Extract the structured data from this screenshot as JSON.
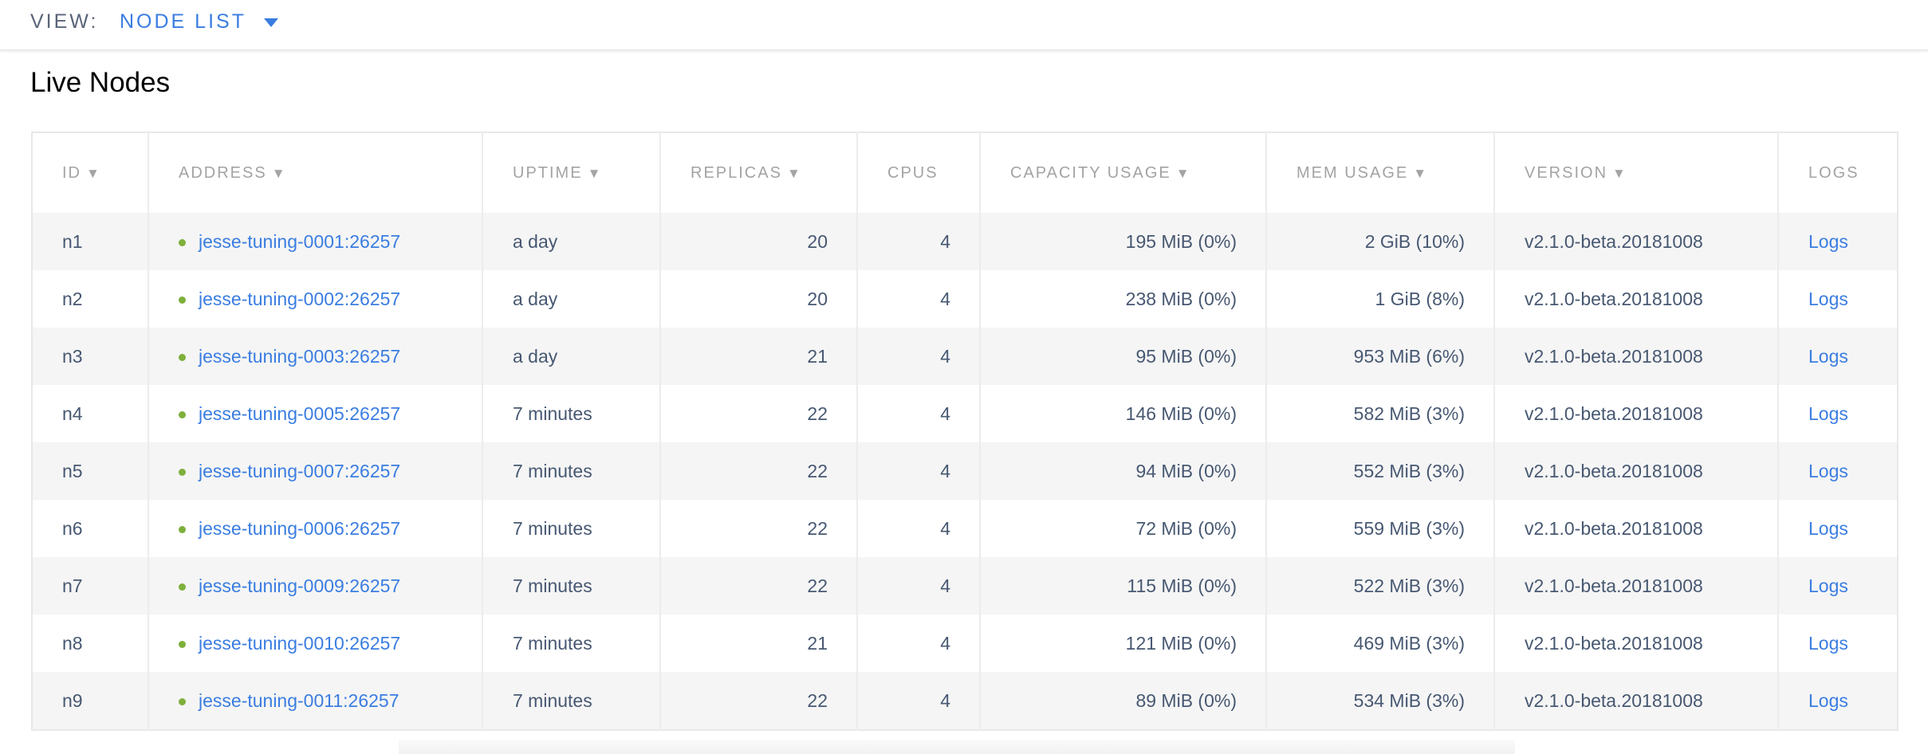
{
  "header": {
    "view_label": "VIEW:",
    "view_value": "NODE LIST"
  },
  "page_title": "Live Nodes",
  "colors": {
    "link": "#3a7de1",
    "status_live": "#7eb03b",
    "text": "#475872",
    "header_text": "#a3a3a3",
    "stripe": "#f5f5f5"
  },
  "table": {
    "columns": [
      {
        "label": "ID",
        "sortable": true
      },
      {
        "label": "ADDRESS",
        "sortable": true
      },
      {
        "label": "UPTIME",
        "sortable": true
      },
      {
        "label": "REPLICAS",
        "sortable": true
      },
      {
        "label": "CPUS",
        "sortable": false
      },
      {
        "label": "CAPACITY USAGE",
        "sortable": true
      },
      {
        "label": "MEM USAGE",
        "sortable": true
      },
      {
        "label": "VERSION",
        "sortable": true
      },
      {
        "label": "LOGS",
        "sortable": false
      }
    ],
    "sort_icon": "▼",
    "rows": [
      {
        "id": "n1",
        "address": "jesse-tuning-0001:26257",
        "uptime": "a day",
        "replicas": "20",
        "cpus": "4",
        "capacity": "195 MiB (0%)",
        "mem": "2 GiB (10%)",
        "version": "v2.1.0-beta.20181008",
        "logs": "Logs"
      },
      {
        "id": "n2",
        "address": "jesse-tuning-0002:26257",
        "uptime": "a day",
        "replicas": "20",
        "cpus": "4",
        "capacity": "238 MiB (0%)",
        "mem": "1 GiB (8%)",
        "version": "v2.1.0-beta.20181008",
        "logs": "Logs"
      },
      {
        "id": "n3",
        "address": "jesse-tuning-0003:26257",
        "uptime": "a day",
        "replicas": "21",
        "cpus": "4",
        "capacity": "95 MiB (0%)",
        "mem": "953 MiB (6%)",
        "version": "v2.1.0-beta.20181008",
        "logs": "Logs"
      },
      {
        "id": "n4",
        "address": "jesse-tuning-0005:26257",
        "uptime": "7 minutes",
        "replicas": "22",
        "cpus": "4",
        "capacity": "146 MiB (0%)",
        "mem": "582 MiB (3%)",
        "version": "v2.1.0-beta.20181008",
        "logs": "Logs"
      },
      {
        "id": "n5",
        "address": "jesse-tuning-0007:26257",
        "uptime": "7 minutes",
        "replicas": "22",
        "cpus": "4",
        "capacity": "94 MiB (0%)",
        "mem": "552 MiB (3%)",
        "version": "v2.1.0-beta.20181008",
        "logs": "Logs"
      },
      {
        "id": "n6",
        "address": "jesse-tuning-0006:26257",
        "uptime": "7 minutes",
        "replicas": "22",
        "cpus": "4",
        "capacity": "72 MiB (0%)",
        "mem": "559 MiB (3%)",
        "version": "v2.1.0-beta.20181008",
        "logs": "Logs"
      },
      {
        "id": "n7",
        "address": "jesse-tuning-0009:26257",
        "uptime": "7 minutes",
        "replicas": "22",
        "cpus": "4",
        "capacity": "115 MiB (0%)",
        "mem": "522 MiB (3%)",
        "version": "v2.1.0-beta.20181008",
        "logs": "Logs"
      },
      {
        "id": "n8",
        "address": "jesse-tuning-0010:26257",
        "uptime": "7 minutes",
        "replicas": "21",
        "cpus": "4",
        "capacity": "121 MiB (0%)",
        "mem": "469 MiB (3%)",
        "version": "v2.1.0-beta.20181008",
        "logs": "Logs"
      },
      {
        "id": "n9",
        "address": "jesse-tuning-0011:26257",
        "uptime": "7 minutes",
        "replicas": "22",
        "cpus": "4",
        "capacity": "89 MiB (0%)",
        "mem": "534 MiB (3%)",
        "version": "v2.1.0-beta.20181008",
        "logs": "Logs"
      }
    ]
  }
}
